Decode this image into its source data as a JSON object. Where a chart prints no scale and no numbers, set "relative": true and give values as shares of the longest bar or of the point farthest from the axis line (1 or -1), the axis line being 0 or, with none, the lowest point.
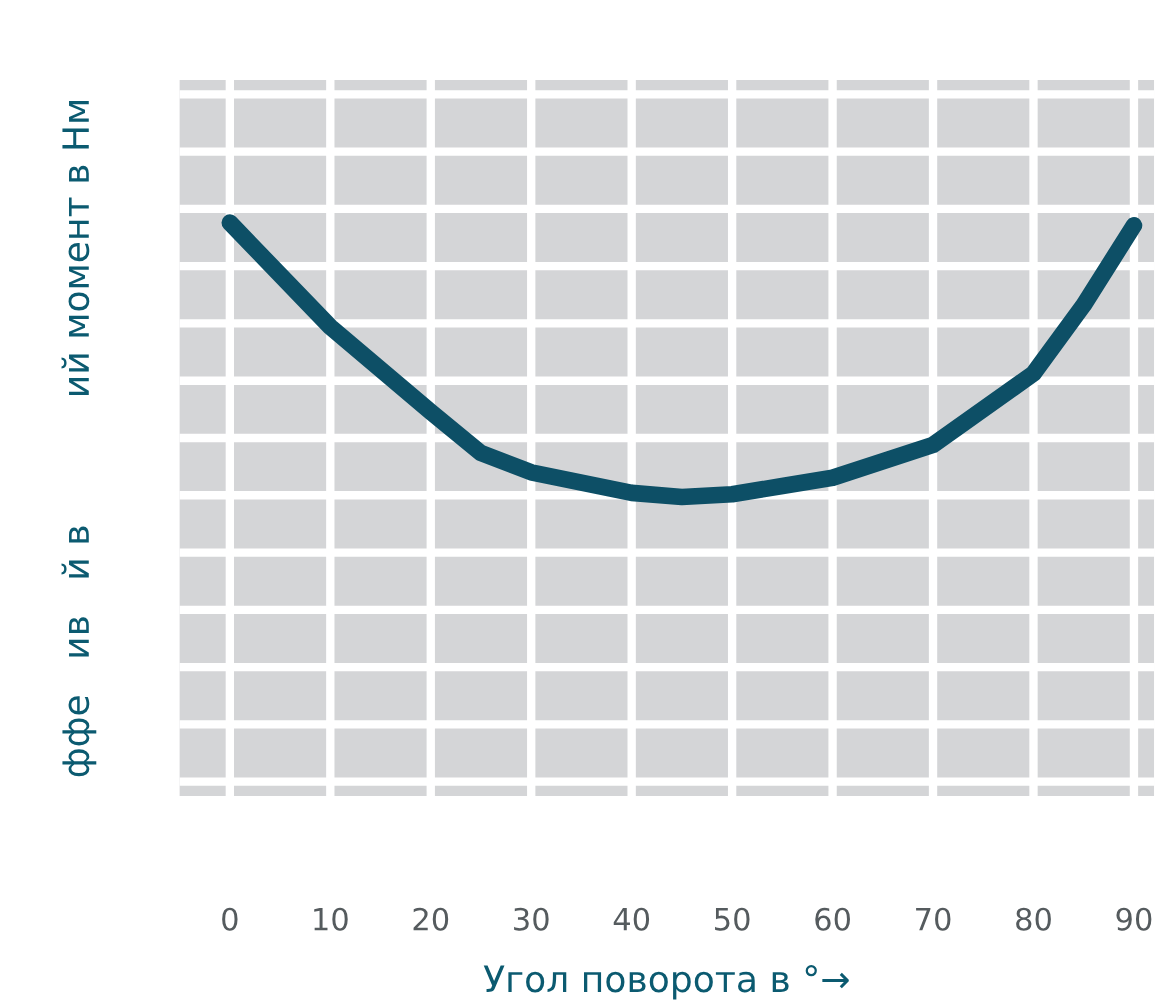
{
  "chart_data": {
    "type": "line",
    "relative": true,
    "xlabel": "Угол поворота в °→",
    "ylabel": "ффе   ив   й в           ий момент в Нм",
    "x": [
      0,
      10,
      20,
      25,
      30,
      40,
      45,
      50,
      55,
      60,
      70,
      80,
      85,
      90
    ],
    "series": [
      {
        "color": "#0d4f66",
        "values": [
          1.0,
          0.62,
          0.31,
          0.16,
          0.09,
          0.015,
          0,
          0.01,
          0.04,
          0.07,
          0.19,
          0.45,
          0.7,
          0.99
        ]
      }
    ],
    "xlim": [
      -5,
      92
    ],
    "xticks": [
      0,
      10,
      20,
      30,
      40,
      50,
      60,
      70,
      80,
      90
    ],
    "grid": true,
    "legend": false,
    "marker": "none",
    "line_style": "solid"
  }
}
